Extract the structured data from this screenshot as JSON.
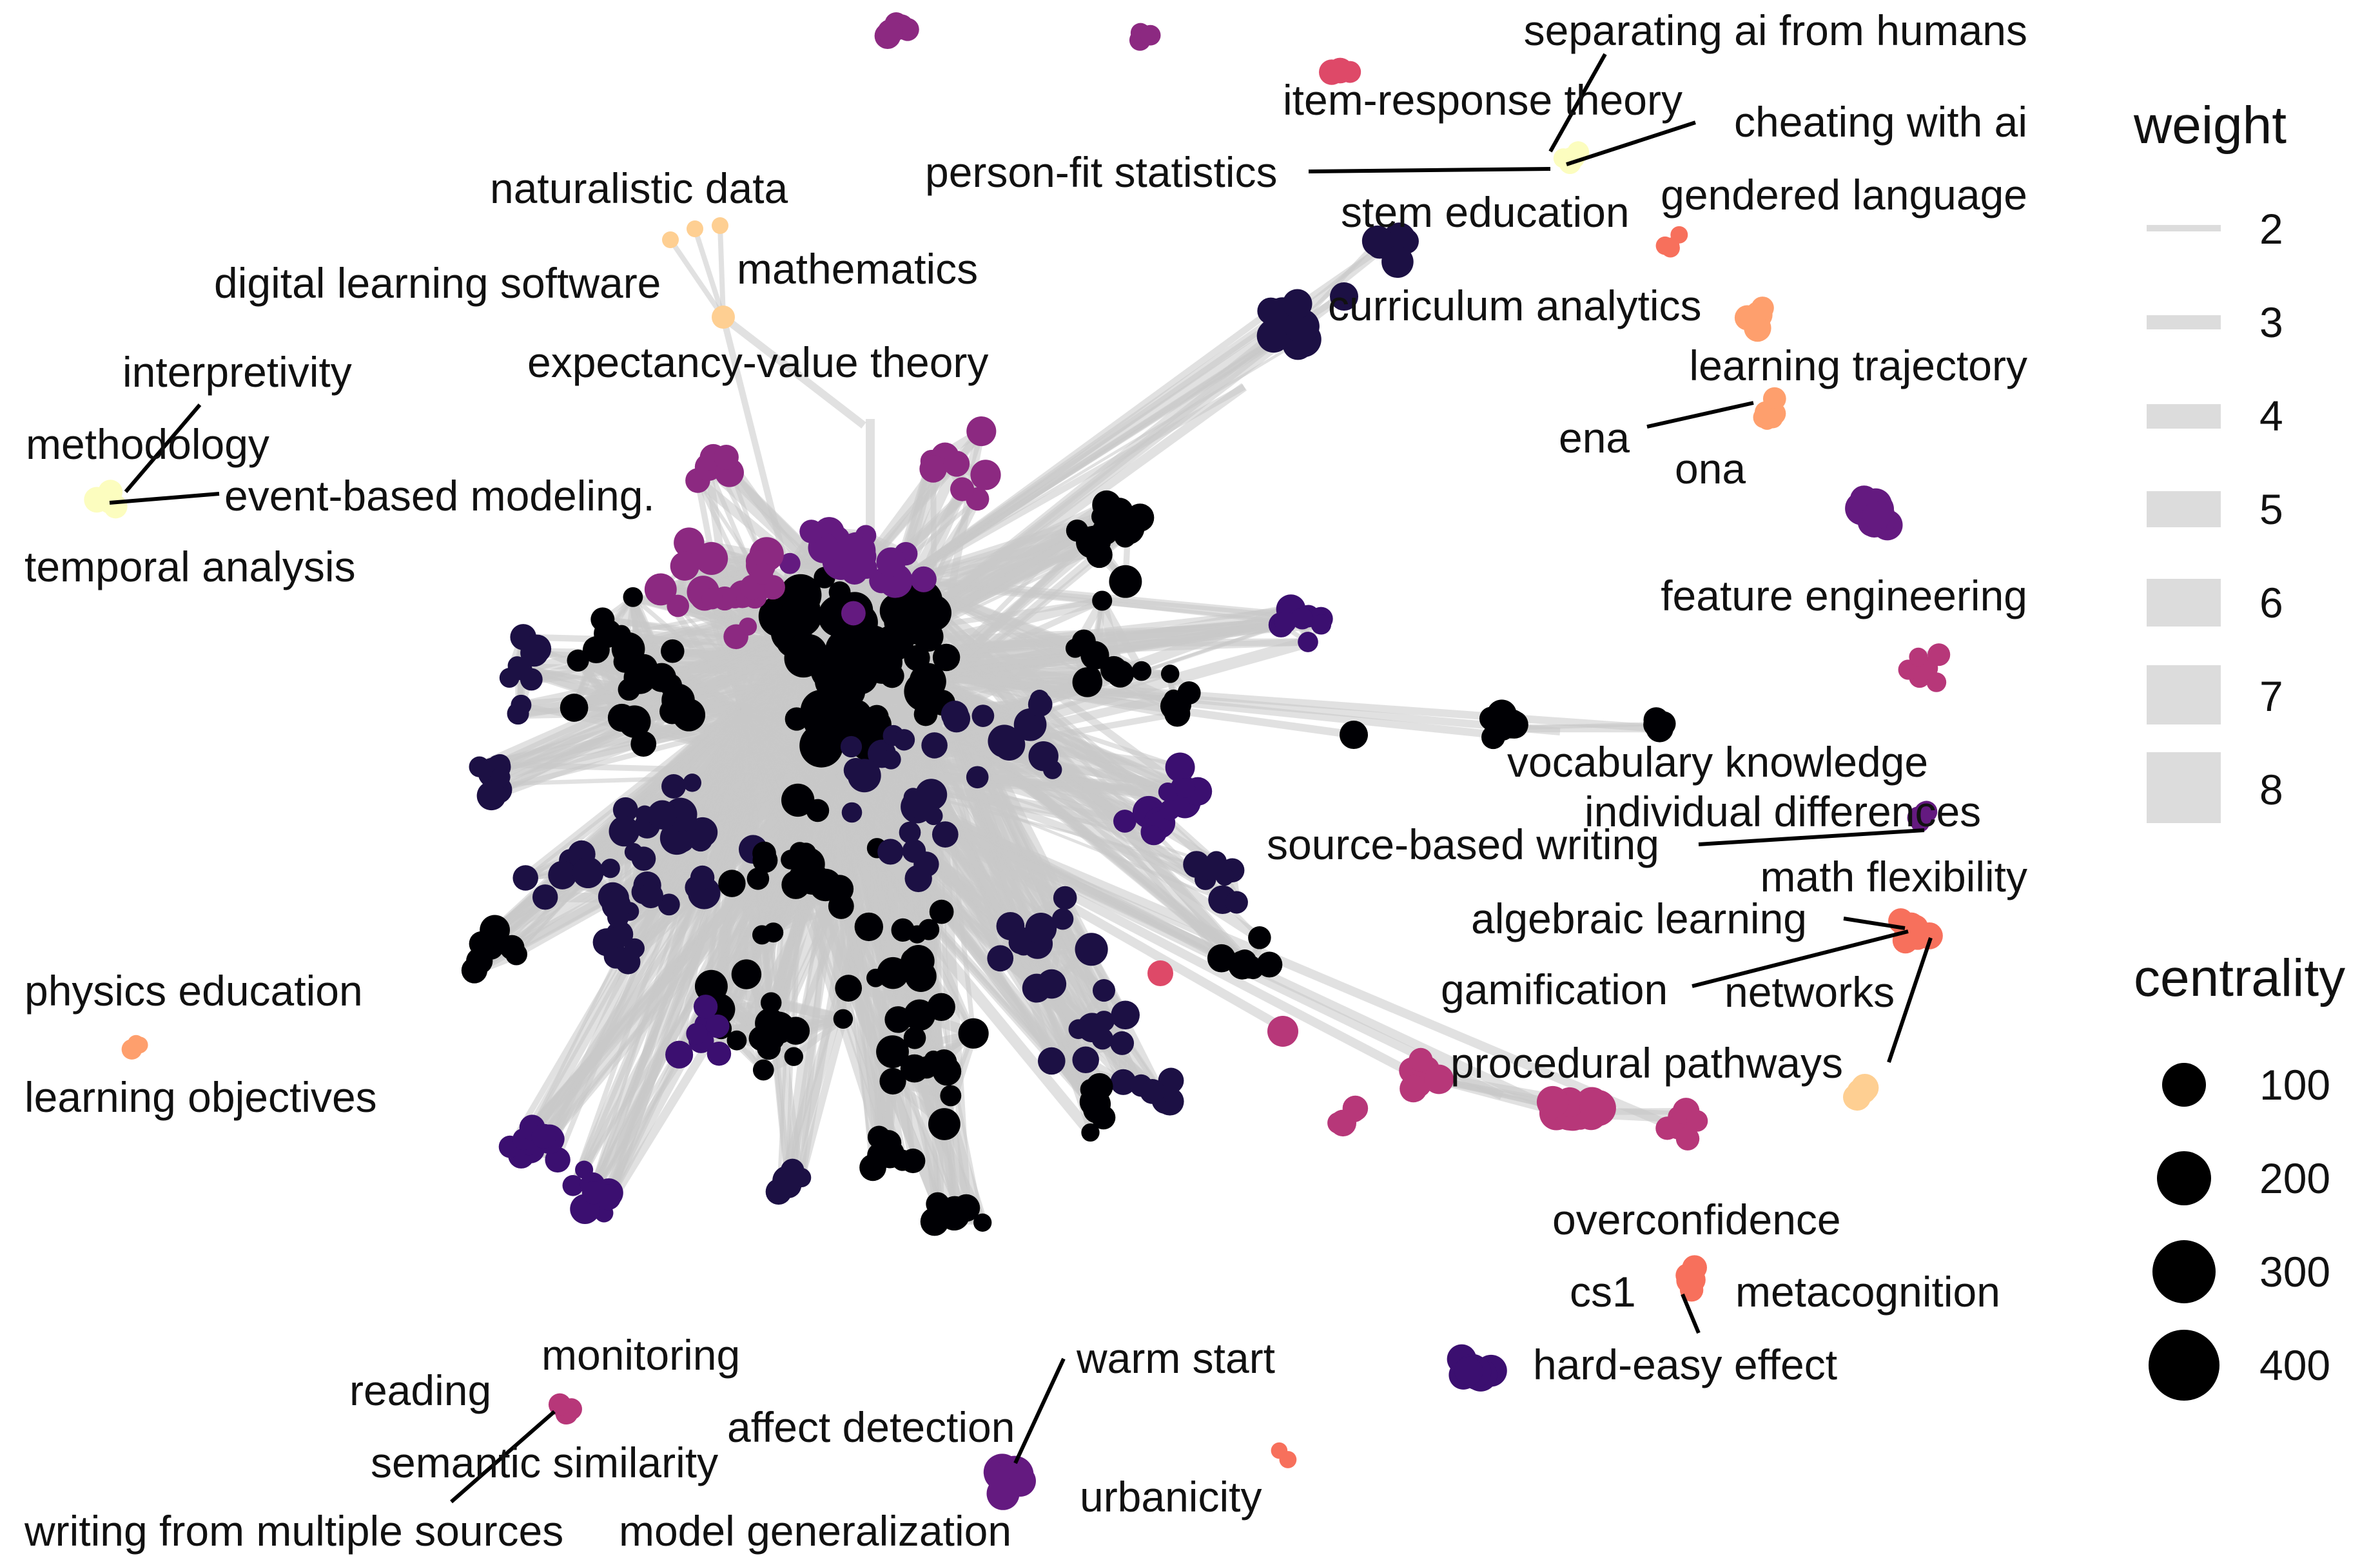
{
  "labels": {
    "separating_ai": "separating ai from humans",
    "irt": "item-response theory",
    "cheating_ai": "cheating with ai",
    "person_fit": "person-fit statistics",
    "stem_ed": "stem education",
    "gendered": "gendered language",
    "naturalistic": "naturalistic data",
    "mathematics": "mathematics",
    "dls": "digital learning software",
    "curriculum": "curriculum analytics",
    "evt": "expectancy-value theory",
    "interpretivity": "interpretivity",
    "methodology": "methodology",
    "event_based": "event-based modeling.",
    "temporal": "temporal analysis",
    "learning_traj": "learning trajectory",
    "ena": "ena",
    "ona": "ona",
    "feature_eng": "feature engineering",
    "vocab": "vocabulary knowledge",
    "indiv_diff": "individual differences",
    "source_based": "source-based writing",
    "math_flex": "math flexibility",
    "algebraic": "algebraic learning",
    "gamification": "gamification",
    "networks": "networks",
    "physics": "physics education",
    "learning_obj": "learning objectives",
    "procedural": "procedural pathways",
    "overconfidence": "overconfidence",
    "cs1": "cs1",
    "metacognition": "metacognition",
    "hard_easy": "hard-easy effect",
    "monitoring": "monitoring",
    "reading": "reading",
    "warm_start": "warm start",
    "affect": "affect detection",
    "semantic": "semantic similarity",
    "urbanicity": "urbanicity",
    "writing_multi": "writing from multiple sources",
    "model_gen": "model generalization"
  },
  "legend": {
    "weight": {
      "title": "weight",
      "items": [
        "2",
        "3",
        "4",
        "5",
        "6",
        "7",
        "8"
      ]
    },
    "centrality": {
      "title": "centrality",
      "items": [
        "100",
        "200",
        "300",
        "400"
      ]
    }
  },
  "colors": {
    "edge": "#c8c8c8",
    "palette": [
      "#000004",
      "#1c1044",
      "#3b0f70",
      "#641a80",
      "#8c2981",
      "#b73779",
      "#de4968",
      "#f7705c",
      "#fe9f6d",
      "#fecf92",
      "#fcfdbf"
    ]
  }
}
